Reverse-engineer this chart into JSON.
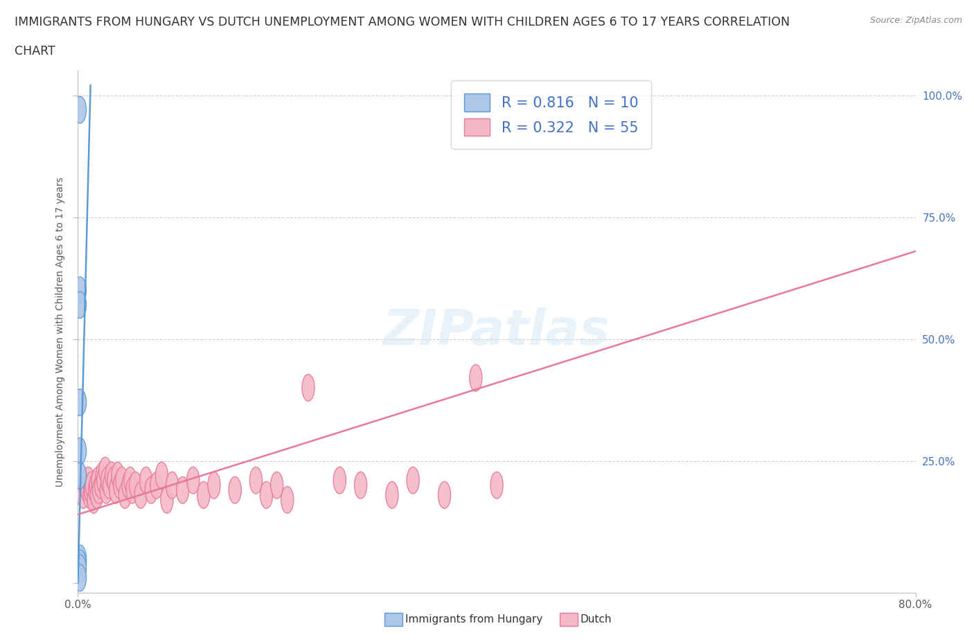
{
  "title_line1": "IMMIGRANTS FROM HUNGARY VS DUTCH UNEMPLOYMENT AMONG WOMEN WITH CHILDREN AGES 6 TO 17 YEARS CORRELATION",
  "title_line2": "CHART",
  "source": "Source: ZipAtlas.com",
  "ylabel": "Unemployment Among Women with Children Ages 6 to 17 years",
  "xlim": [
    0,
    0.8
  ],
  "ylim": [
    -0.02,
    1.05
  ],
  "legend_R1": "R = 0.816",
  "legend_N1": "N = 10",
  "legend_R2": "R = 0.322",
  "legend_N2": "N = 55",
  "color_hungary_face": "#aec6e8",
  "color_hungary_edge": "#5b9bd5",
  "color_dutch_face": "#f5b8c8",
  "color_dutch_edge": "#e87898",
  "color_hungary_line": "#5b9bd5",
  "color_dutch_line": "#e87898",
  "color_blue_text": "#4472c4",
  "watermark": "ZIPatlas",
  "hungary_x": [
    0.002,
    0.002,
    0.002,
    0.002,
    0.002,
    0.002,
    0.002,
    0.002,
    0.002,
    0.002
  ],
  "hungary_y": [
    0.97,
    0.6,
    0.57,
    0.37,
    0.27,
    0.22,
    0.05,
    0.04,
    0.03,
    0.01
  ],
  "dutch_x": [
    0.005,
    0.007,
    0.009,
    0.01,
    0.011,
    0.012,
    0.013,
    0.015,
    0.016,
    0.017,
    0.018,
    0.019,
    0.02,
    0.022,
    0.023,
    0.024,
    0.026,
    0.027,
    0.028,
    0.03,
    0.032,
    0.034,
    0.036,
    0.038,
    0.04,
    0.042,
    0.045,
    0.048,
    0.05,
    0.052,
    0.055,
    0.06,
    0.065,
    0.07,
    0.075,
    0.08,
    0.085,
    0.09,
    0.1,
    0.11,
    0.12,
    0.13,
    0.15,
    0.17,
    0.18,
    0.19,
    0.2,
    0.22,
    0.25,
    0.27,
    0.3,
    0.32,
    0.35,
    0.38,
    0.4
  ],
  "dutch_y": [
    0.18,
    0.2,
    0.19,
    0.21,
    0.18,
    0.19,
    0.2,
    0.17,
    0.19,
    0.2,
    0.18,
    0.21,
    0.19,
    0.2,
    0.22,
    0.21,
    0.23,
    0.19,
    0.21,
    0.2,
    0.22,
    0.21,
    0.19,
    0.22,
    0.2,
    0.21,
    0.18,
    0.2,
    0.21,
    0.19,
    0.2,
    0.18,
    0.21,
    0.19,
    0.2,
    0.22,
    0.17,
    0.2,
    0.19,
    0.21,
    0.18,
    0.2,
    0.19,
    0.21,
    0.18,
    0.2,
    0.17,
    0.4,
    0.21,
    0.2,
    0.18,
    0.21,
    0.18,
    0.42,
    0.2
  ],
  "hungary_trend_x": [
    0.0,
    0.012
  ],
  "hungary_trend_y": [
    0.0,
    1.02
  ],
  "dutch_trend_x": [
    0.0,
    0.8
  ],
  "dutch_trend_y": [
    0.14,
    0.68
  ],
  "background_color": "#ffffff",
  "grid_color": "#cccccc",
  "ytick_values": [
    0.0,
    0.25,
    0.5,
    0.75,
    1.0
  ],
  "ytick_labels": [
    "",
    "25.0%",
    "50.0%",
    "75.0%",
    "100.0%"
  ]
}
